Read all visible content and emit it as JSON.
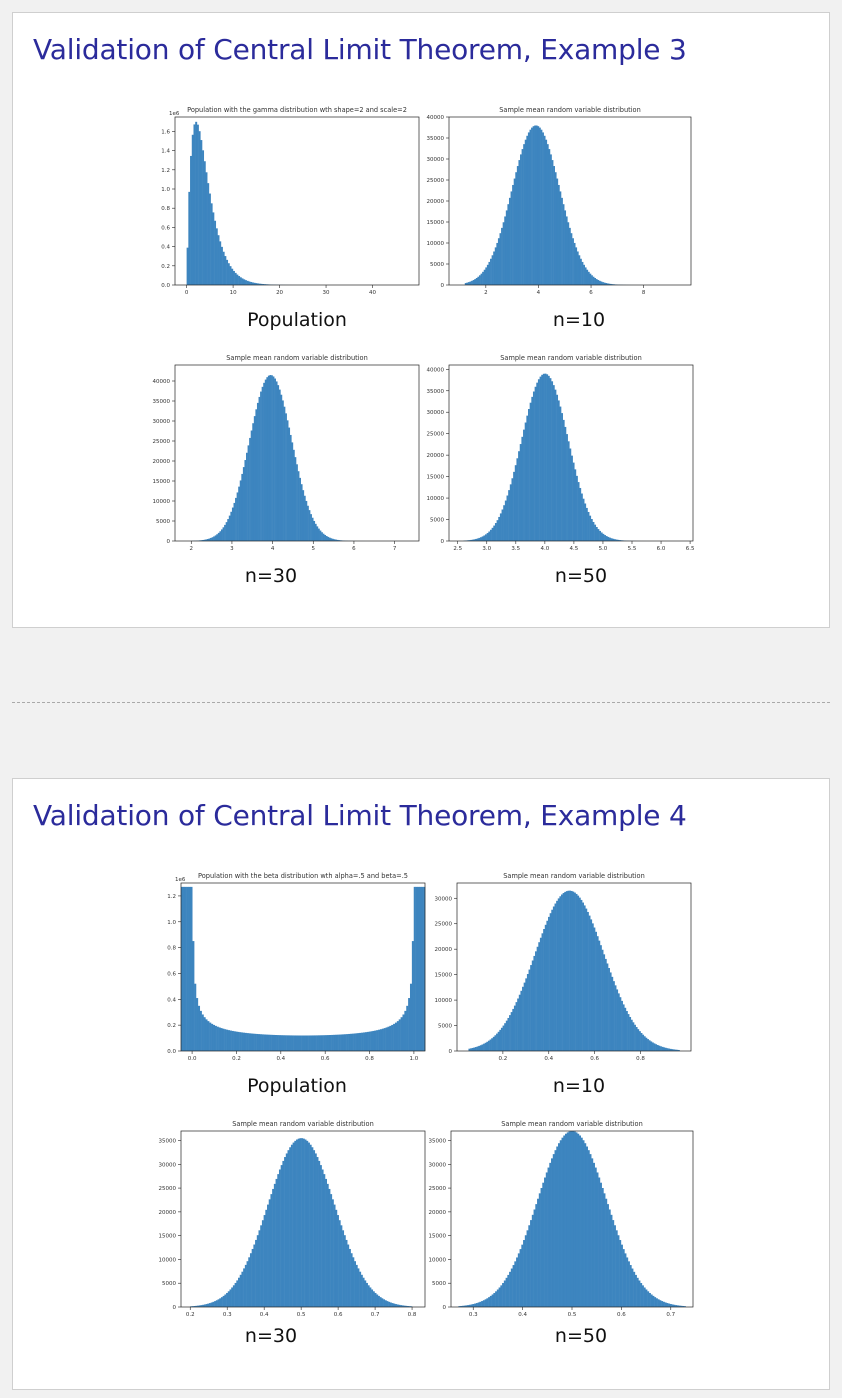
{
  "colors": {
    "title": "#2b2b9b",
    "bar": "#3d85bf",
    "page_bg": "#f1f1f1"
  },
  "slides": [
    {
      "title": "Validation of Central Limit Theorem, Example 3",
      "captions": [
        "Population",
        "n=10",
        "n=30",
        "n=50"
      ]
    },
    {
      "title": "Validation of Central Limit Theorem, Example 4",
      "captions": [
        "Population",
        "n=10",
        "n=30",
        "n=50"
      ]
    }
  ],
  "chart_data": [
    {
      "id": "s1p1",
      "type": "bar",
      "distribution": "gamma",
      "shape": 2,
      "scale": 2,
      "title": "Population with the gamma distribution wth shape=2 and scale=2",
      "scale_note": "1e6",
      "xlim": [
        -2.5,
        50
      ],
      "ylim": [
        0,
        1.75
      ],
      "xticks": [
        0,
        10,
        20,
        30,
        40
      ],
      "yticks": [
        0.0,
        0.2,
        0.4,
        0.6,
        0.8,
        1.0,
        1.2,
        1.4,
        1.6
      ],
      "ytick_labels": [
        "0.0",
        "0.2",
        "0.4",
        "0.6",
        "0.8",
        "1.0",
        "1.2",
        "1.4",
        "1.6"
      ],
      "peak_value": 1.7,
      "range": [
        0,
        48
      ]
    },
    {
      "id": "s1p2",
      "type": "bar",
      "distribution": "normal",
      "mean": 3.9,
      "sd": 0.9,
      "title": "Sample mean random variable distribution",
      "xlim": [
        0.6,
        9.8
      ],
      "ylim": [
        0,
        40000
      ],
      "xticks": [
        2,
        4,
        6,
        8
      ],
      "yticks": [
        0,
        5000,
        10000,
        15000,
        20000,
        25000,
        30000,
        35000,
        40000
      ],
      "peak_value": 38000,
      "range": [
        1.2,
        9.0
      ]
    },
    {
      "id": "s1p3",
      "type": "bar",
      "distribution": "normal",
      "mean": 3.95,
      "sd": 0.52,
      "title": "Sample mean random variable distribution",
      "xlim": [
        1.6,
        7.6
      ],
      "ylim": [
        0,
        44000
      ],
      "xticks": [
        2,
        3,
        4,
        5,
        6,
        7
      ],
      "yticks": [
        0,
        5000,
        10000,
        15000,
        20000,
        25000,
        30000,
        35000,
        40000
      ],
      "peak_value": 41500,
      "range": [
        2.0,
        7.0
      ]
    },
    {
      "id": "s1p4",
      "type": "bar",
      "distribution": "normal",
      "mean": 4.0,
      "sd": 0.4,
      "title": "Sample mean random variable distribution",
      "xlim": [
        2.35,
        6.55
      ],
      "ylim": [
        0,
        41000
      ],
      "xticks": [
        2.5,
        3.0,
        3.5,
        4.0,
        4.5,
        5.0,
        5.5,
        6.0,
        6.5
      ],
      "xtick_labels": [
        "2.5",
        "3.0",
        "3.5",
        "4.0",
        "4.5",
        "5.0",
        "5.5",
        "6.0",
        "6.5"
      ],
      "yticks": [
        0,
        5000,
        10000,
        15000,
        20000,
        25000,
        30000,
        35000,
        40000
      ],
      "peak_value": 39000,
      "range": [
        2.6,
        6.3
      ]
    },
    {
      "id": "s2p1",
      "type": "bar",
      "distribution": "beta",
      "alpha": 0.5,
      "beta": 0.5,
      "title": "Population with the beta distribution wth alpha=.5 and beta=.5",
      "scale_note": "1e6",
      "xlim": [
        -0.05,
        1.05
      ],
      "ylim": [
        0,
        1.3
      ],
      "xticks": [
        0.0,
        0.2,
        0.4,
        0.6,
        0.8,
        1.0
      ],
      "xtick_labels": [
        "0.0",
        "0.2",
        "0.4",
        "0.6",
        "0.8",
        "1.0"
      ],
      "yticks": [
        0.0,
        0.2,
        0.4,
        0.6,
        0.8,
        1.0,
        1.2
      ],
      "ytick_labels": [
        "0.0",
        "0.2",
        "0.4",
        "0.6",
        "0.8",
        "1.0",
        "1.2"
      ],
      "edge_value": 1.27,
      "center_value": 0.12
    },
    {
      "id": "s2p2",
      "type": "bar",
      "distribution": "normal",
      "mean": 0.49,
      "sd": 0.15,
      "title": "Sample mean random variable distribution",
      "xlim": [
        0.0,
        1.02
      ],
      "ylim": [
        0,
        33000
      ],
      "xticks": [
        0.2,
        0.4,
        0.6,
        0.8
      ],
      "xtick_labels": [
        "0.2",
        "0.4",
        "0.6",
        "0.8"
      ],
      "yticks": [
        0,
        5000,
        10000,
        15000,
        20000,
        25000,
        30000
      ],
      "peak_value": 31500,
      "range": [
        0.05,
        0.97
      ]
    },
    {
      "id": "s2p3",
      "type": "bar",
      "distribution": "normal",
      "mean": 0.5,
      "sd": 0.09,
      "title": "Sample mean random variable distribution",
      "xlim": [
        0.175,
        0.835
      ],
      "ylim": [
        0,
        37000
      ],
      "xticks": [
        0.2,
        0.3,
        0.4,
        0.5,
        0.6,
        0.7,
        0.8
      ],
      "xtick_labels": [
        "0.2",
        "0.3",
        "0.4",
        "0.5",
        "0.6",
        "0.7",
        "0.8"
      ],
      "yticks": [
        0,
        5000,
        10000,
        15000,
        20000,
        25000,
        30000,
        35000
      ],
      "peak_value": 35500,
      "range": [
        0.2,
        0.8
      ]
    },
    {
      "id": "s2p4",
      "type": "bar",
      "distribution": "normal",
      "mean": 0.5,
      "sd": 0.07,
      "title": "Sample mean random variable distribution",
      "xlim": [
        0.255,
        0.745
      ],
      "ylim": [
        0,
        37000
      ],
      "xticks": [
        0.3,
        0.4,
        0.5,
        0.6,
        0.7
      ],
      "xtick_labels": [
        "0.3",
        "0.4",
        "0.5",
        "0.6",
        "0.7"
      ],
      "yticks": [
        0,
        5000,
        10000,
        15000,
        20000,
        25000,
        30000,
        35000
      ],
      "peak_value": 37000,
      "range": [
        0.27,
        0.73
      ]
    }
  ]
}
